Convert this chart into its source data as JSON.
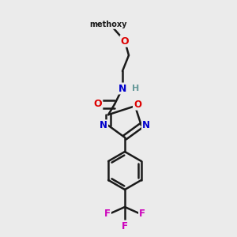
{
  "background_color": "#ebebeb",
  "bond_color": "#1a1a1a",
  "atom_colors": {
    "O": "#dd0000",
    "N": "#0000cc",
    "F": "#cc00bb",
    "H": "#669999",
    "C": "#1a1a1a"
  },
  "figsize": [
    3.0,
    3.0
  ],
  "dpi": 100
}
